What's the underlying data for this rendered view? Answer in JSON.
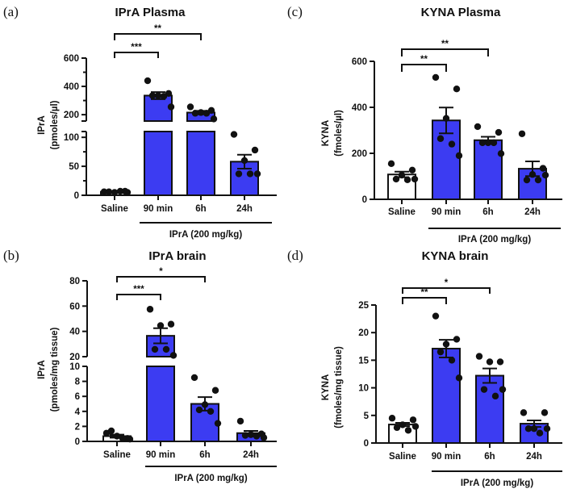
{
  "chart_data": [
    {
      "panel": "(a)",
      "type": "bar",
      "title": "IPrA Plasma",
      "ylabel": [
        "IPrA",
        "(pmoles/µl)"
      ],
      "categories": [
        "Saline",
        "90 min",
        "6h",
        "24h"
      ],
      "group_label": "IPrA (200 mg/kg)",
      "y_segments": [
        {
          "range": [
            0,
            110
          ],
          "ticks": [
            0,
            50,
            100
          ],
          "minor_ticks": [
            25,
            75
          ]
        },
        {
          "range": [
            155,
            600
          ],
          "ticks": [
            200,
            400,
            600
          ],
          "minor_ticks": [
            300,
            500
          ]
        }
      ],
      "bar_colors": [
        "#ffffff",
        "#3c3cf2",
        "#3c3cf2",
        "#3c3cf2"
      ],
      "means": [
        6,
        335,
        215,
        58
      ],
      "sem": [
        1,
        25,
        12,
        12
      ],
      "points": [
        [
          6,
          7,
          5,
          6,
          7,
          5
        ],
        [
          440,
          350,
          335,
          335,
          330,
          255
        ],
        [
          255,
          230,
          215,
          210,
          210,
          170
        ],
        [
          105,
          78,
          60,
          37,
          37,
          37
        ]
      ],
      "significance": [
        {
          "from": "Saline",
          "to": "90 min",
          "label": "***"
        },
        {
          "from": "Saline",
          "to": "6h",
          "label": "**"
        }
      ]
    },
    {
      "panel": "(b)",
      "type": "bar",
      "title": "IPrA brain",
      "ylabel": [
        "IPrA",
        "(pmoles/mg tissue)"
      ],
      "categories": [
        "Saline",
        "90 min",
        "6h",
        "24h"
      ],
      "group_label": "IPrA (200 mg/kg)",
      "y_segments": [
        {
          "range": [
            0,
            10
          ],
          "ticks": [
            0,
            2,
            4,
            6,
            8,
            10
          ],
          "minor_ticks": []
        },
        {
          "range": [
            20,
            80
          ],
          "ticks": [
            20,
            40,
            60,
            80
          ],
          "minor_ticks": []
        }
      ],
      "bar_colors": [
        "#ffffff",
        "#3c3cf2",
        "#3c3cf2",
        "#3c3cf2"
      ],
      "means": [
        0.7,
        36.5,
        5.0,
        1.1
      ],
      "sem": [
        0.2,
        6,
        0.9,
        0.3
      ],
      "points": [
        [
          1.1,
          0.4,
          0.7,
          1.4,
          0.4,
          0.3
        ],
        [
          57.5,
          45.7,
          44.6,
          25.8,
          25.8,
          21
        ],
        [
          8.5,
          6.8,
          4.9,
          4.2,
          4.0,
          2.4
        ],
        [
          2.7,
          1.0,
          0.9,
          0.8,
          0.7,
          0.5
        ]
      ],
      "significance": [
        {
          "from": "Saline",
          "to": "90 min",
          "label": "***"
        },
        {
          "from": "Saline",
          "to": "6h",
          "label": "*"
        }
      ]
    },
    {
      "panel": "(c)",
      "type": "bar",
      "title": "KYNA Plasma",
      "ylabel": [
        "KYNA",
        "(fmoles/µl)"
      ],
      "categories": [
        "Saline",
        "90 min",
        "6h",
        "24h"
      ],
      "group_label": "IPrA (200 mg/kg)",
      "y_segments": [
        {
          "range": [
            0,
            600
          ],
          "ticks": [
            0,
            200,
            400,
            600
          ],
          "minor_ticks": []
        }
      ],
      "bar_colors": [
        "#ffffff",
        "#3c3cf2",
        "#3c3cf2",
        "#3c3cf2"
      ],
      "means": [
        108,
        343,
        257,
        133
      ],
      "sem": [
        12,
        56,
        15,
        32
      ],
      "points": [
        [
          155,
          127,
          105,
          88,
          85,
          88
        ],
        [
          530,
          480,
          352,
          264,
          240,
          190
        ],
        [
          316,
          291,
          246,
          246,
          246,
          199
        ],
        [
          285,
          135,
          108,
          84,
          84,
          105
        ]
      ],
      "significance": [
        {
          "from": "Saline",
          "to": "90 min",
          "label": "**"
        },
        {
          "from": "Saline",
          "to": "6h",
          "label": "**"
        }
      ]
    },
    {
      "panel": "(d)",
      "type": "bar",
      "title": "KYNA brain",
      "ylabel": [
        "KYNA",
        "(fmoles/mg tissue)"
      ],
      "categories": [
        "Saline",
        "90 min",
        "6h",
        "24h"
      ],
      "group_label": "IPrA (200 mg/kg)",
      "y_segments": [
        {
          "range": [
            0,
            25
          ],
          "ticks": [
            0,
            5,
            10,
            15,
            20,
            25
          ],
          "minor_ticks": []
        }
      ],
      "bar_colors": [
        "#ffffff",
        "#3c3cf2",
        "#3c3cf2",
        "#3c3cf2"
      ],
      "means": [
        3.35,
        17.1,
        12.2,
        3.5
      ],
      "sem": [
        0.3,
        1.6,
        1.3,
        0.6
      ],
      "points": [
        [
          4.5,
          4.2,
          3.3,
          2.8,
          2.3,
          3.0
        ],
        [
          23.0,
          18.8,
          17.9,
          16.5,
          15.0,
          11.8
        ],
        [
          15.7,
          14.7,
          14.7,
          9.7,
          8.5,
          9.7
        ],
        [
          5.5,
          5.5,
          2.6,
          2.6,
          1.8,
          2.6
        ]
      ],
      "significance": [
        {
          "from": "Saline",
          "to": "90 min",
          "label": "**"
        },
        {
          "from": "Saline",
          "to": "6h",
          "label": "*"
        }
      ]
    }
  ]
}
